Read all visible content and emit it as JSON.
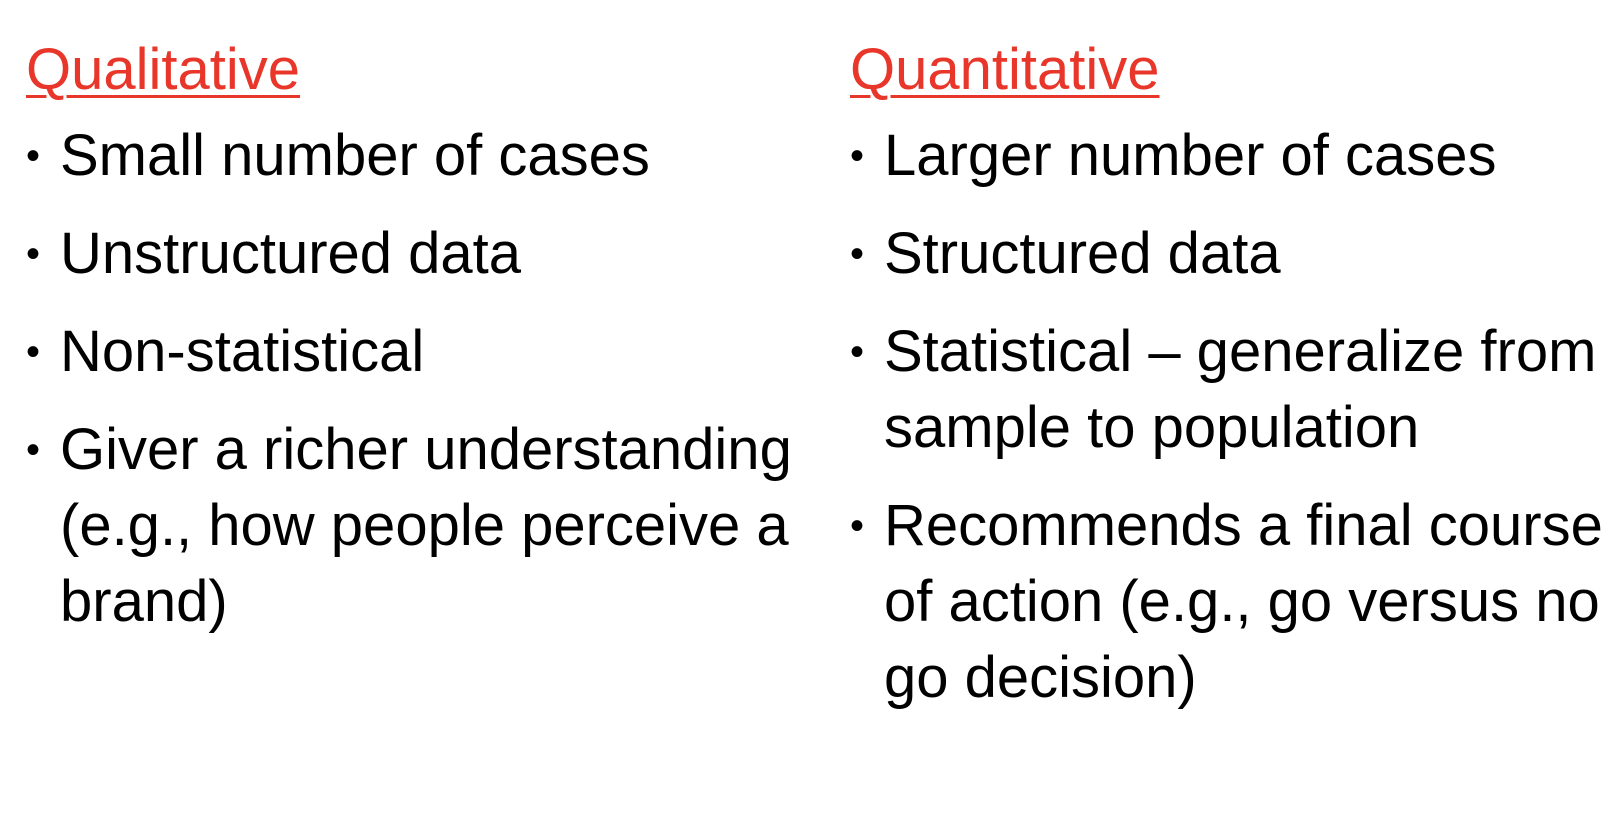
{
  "colors": {
    "heading": "#e8372a",
    "text": "#000000",
    "background": "#ffffff"
  },
  "bullet_glyph": "•",
  "qualitative": {
    "title": "Qualitative",
    "items": [
      "Small number of cases",
      "Unstructured data",
      "Non-statistical",
      "Giver a richer understanding (e.g., how people perceive a brand)"
    ]
  },
  "quantitative": {
    "title": "Quantitative",
    "items": [
      "Larger number of cases",
      "Structured data",
      "Statistical – generalize from sample to population",
      "Recommends a final course of action (e.g., go versus no go decision)"
    ]
  }
}
